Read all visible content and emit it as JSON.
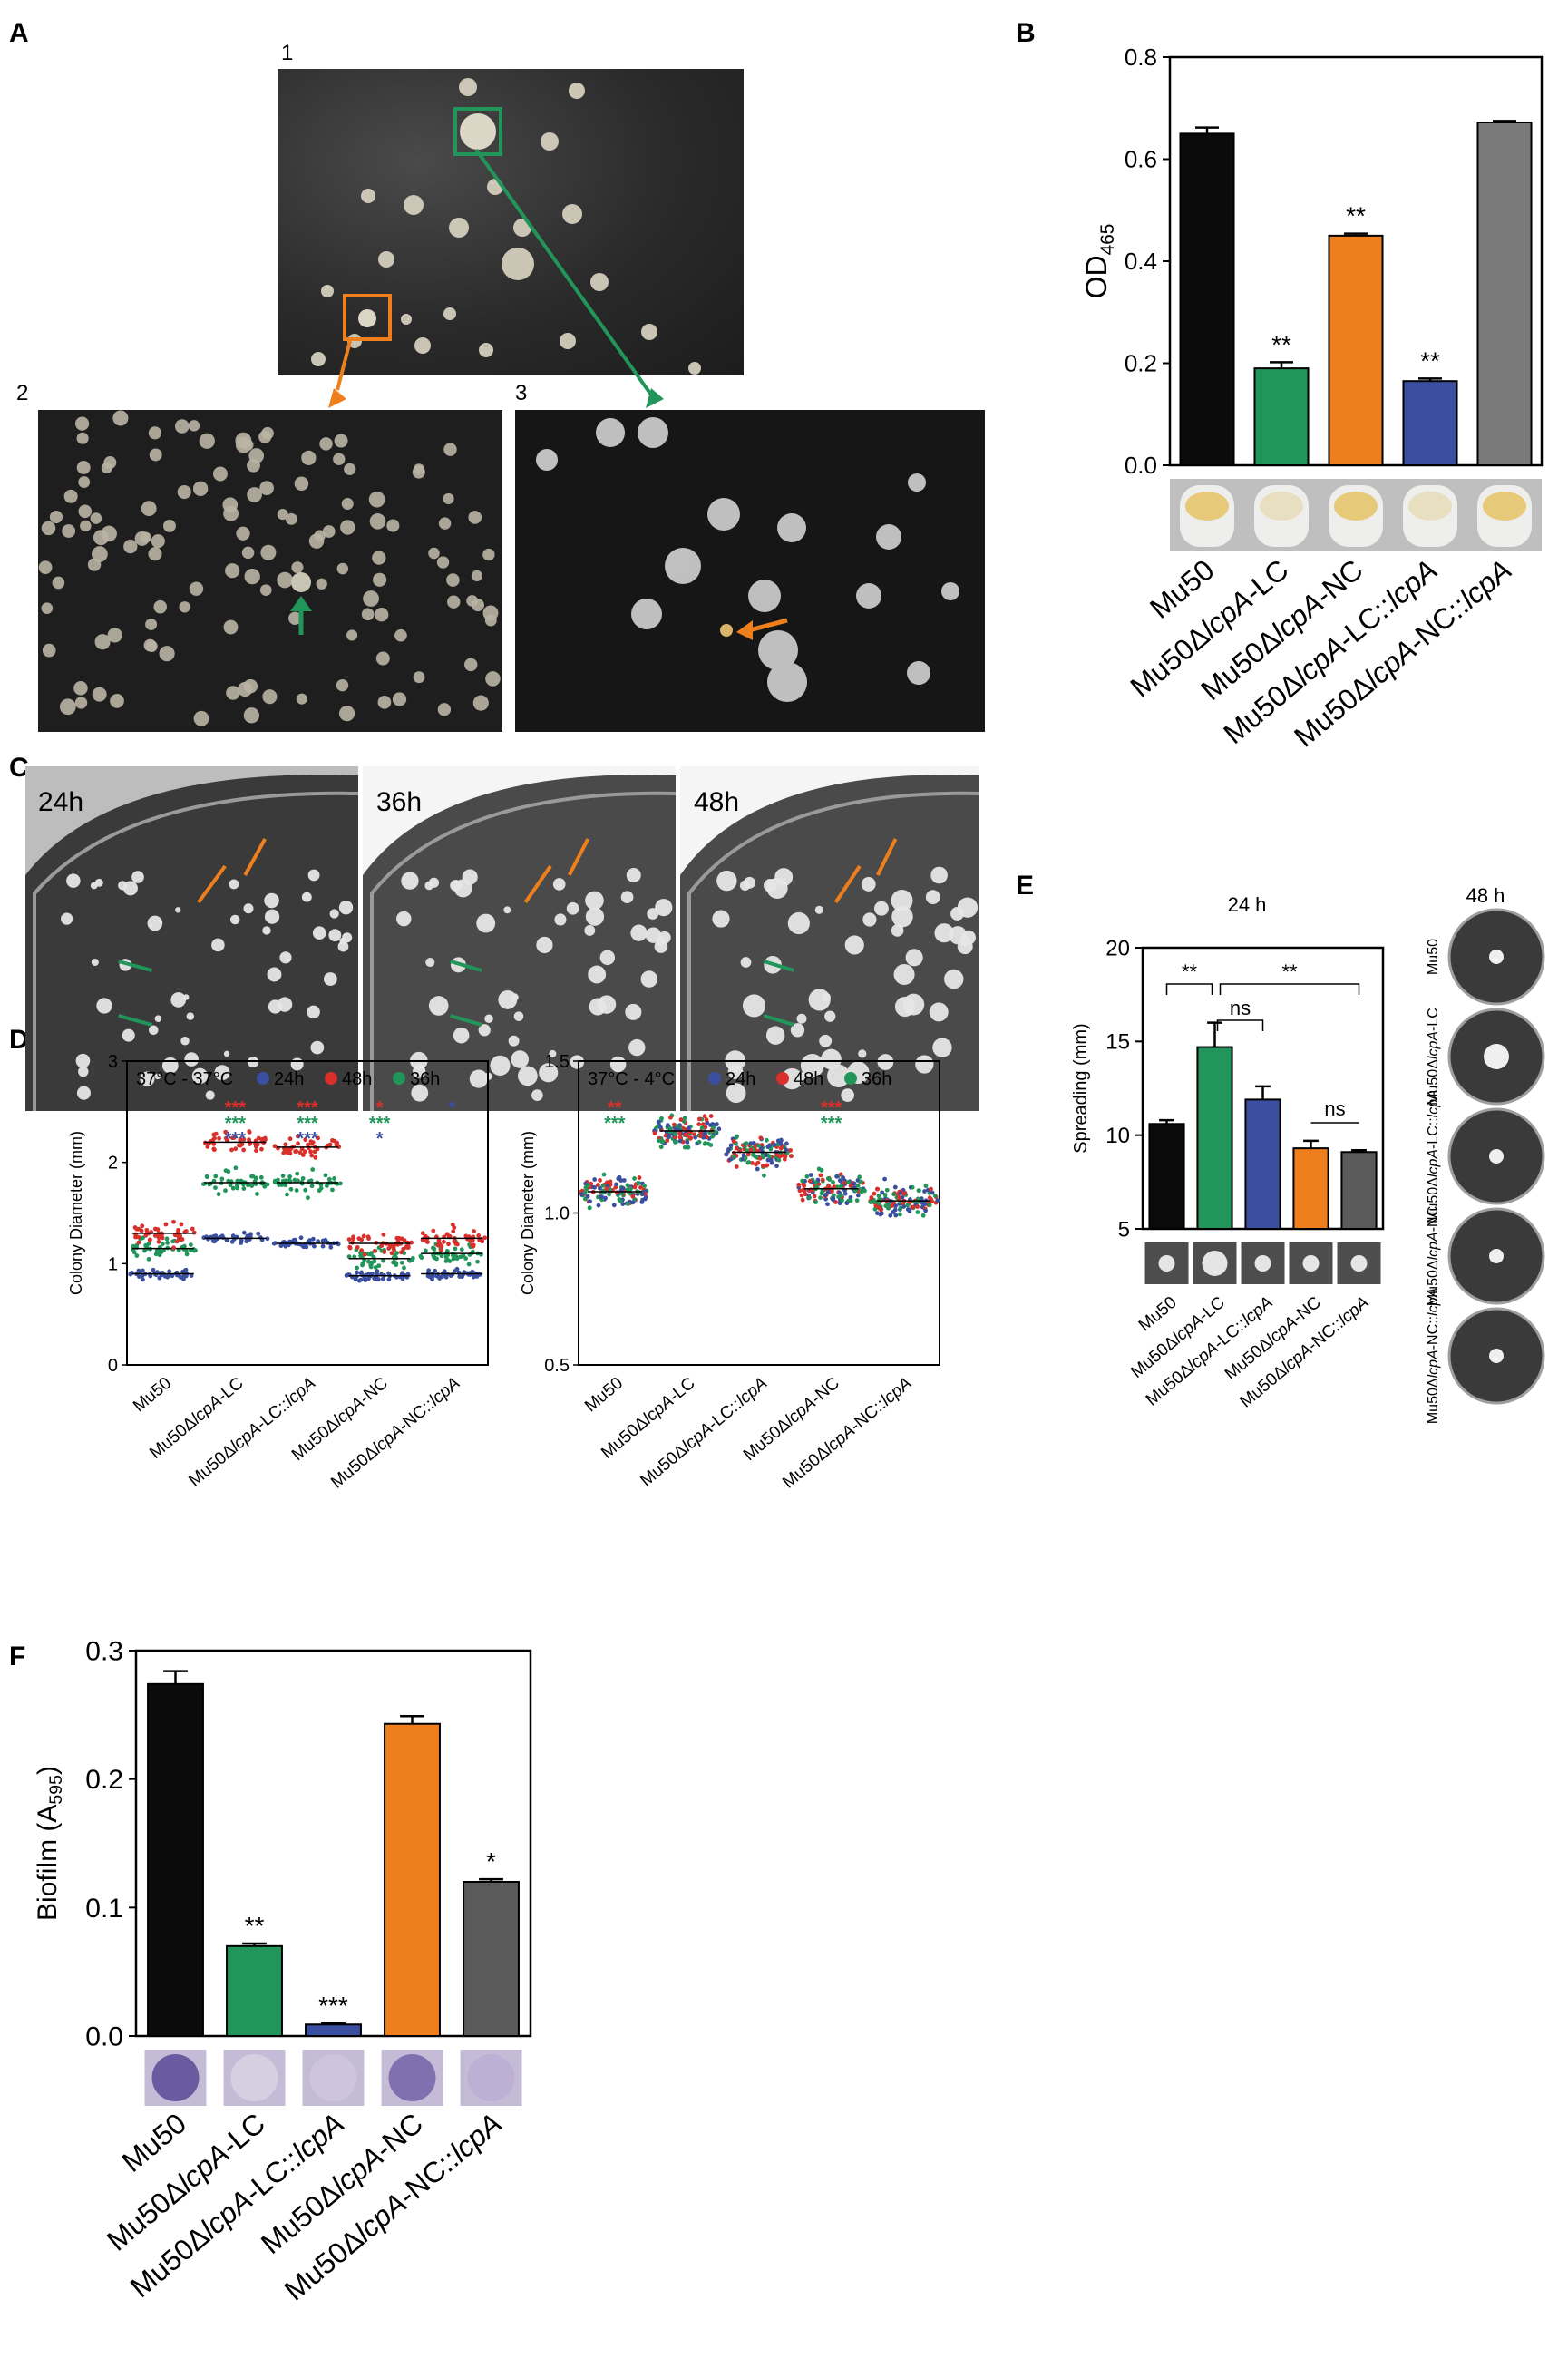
{
  "panels": {
    "A": {
      "letter": "A",
      "sub": [
        "1",
        "2",
        "3"
      ]
    },
    "B": {
      "letter": "B"
    },
    "C": {
      "letter": "C",
      "times": [
        "24h",
        "36h",
        "48h"
      ]
    },
    "D": {
      "letter": "D"
    },
    "E": {
      "letter": "E",
      "left_title": "24 h",
      "right_title": "48 h",
      "right_labels": [
        "Mu50",
        "Mu50ΔlcpA-LC",
        "Mu50ΔlcpA-LC::lcpA",
        "Mu50ΔlcpA-NC",
        "Mu50ΔlcpA-NC::lcpA"
      ]
    },
    "F": {
      "letter": "F"
    }
  },
  "colors": {
    "black": "#0b0b0b",
    "green": "#21955a",
    "orange": "#ee7f1c",
    "blue": "#3a4fa0",
    "gray": "#7a7a7a",
    "darkgray": "#5a5a5a",
    "red": "#d9302c"
  },
  "chart_data": [
    {
      "id": "B",
      "type": "bar",
      "categories": [
        "Mu50",
        "Mu50ΔlcpA-LC",
        "Mu50ΔlcpA-NC",
        "Mu50ΔlcpA-LC::lcpA",
        "Mu50ΔlcpA-NC::lcpA"
      ],
      "values": [
        0.65,
        0.19,
        0.45,
        0.165,
        0.672
      ],
      "errors": [
        0.012,
        0.012,
        0.004,
        0.005,
        0.003
      ],
      "significance": [
        "",
        "**",
        "**",
        "**",
        ""
      ],
      "bar_colors": [
        "#0b0b0b",
        "#21955a",
        "#ee7f1c",
        "#3a4fa0",
        "#7a7a7a"
      ],
      "ylabel": "OD465",
      "ylim": [
        0,
        0.8
      ],
      "yticks": [
        "0.0",
        "0.2",
        "0.4",
        "0.6",
        "0.8"
      ]
    },
    {
      "id": "D1",
      "type": "scatter",
      "legend_title": "37°C - 37°C",
      "legend": [
        {
          "name": "24h",
          "color": "#3a4fa0"
        },
        {
          "name": "48h",
          "color": "#d9302c"
        },
        {
          "name": "36h",
          "color": "#21955a"
        }
      ],
      "categories": [
        "Mu50",
        "Mu50ΔlcpA-LC",
        "Mu50ΔlcpA-LC::lcpA",
        "Mu50ΔlcpA-NC",
        "Mu50ΔlcpA-NC::lcpA"
      ],
      "means": {
        "24h": [
          0.9,
          1.25,
          1.2,
          0.88,
          0.9
        ],
        "36h": [
          1.15,
          1.8,
          1.8,
          1.05,
          1.1
        ],
        "48h": [
          1.3,
          2.2,
          2.15,
          1.2,
          1.25
        ]
      },
      "significance": [
        [],
        [
          {
            "text": "***",
            "color": "#d9302c"
          },
          {
            "text": "***",
            "color": "#21955a"
          },
          {
            "text": "***",
            "color": "#3a4fa0"
          }
        ],
        [
          {
            "text": "***",
            "color": "#d9302c"
          },
          {
            "text": "***",
            "color": "#21955a"
          },
          {
            "text": "***",
            "color": "#3a4fa0"
          }
        ],
        [
          {
            "text": "*",
            "color": "#d9302c"
          },
          {
            "text": "***",
            "color": "#21955a"
          },
          {
            "text": "*",
            "color": "#3a4fa0"
          }
        ],
        [
          {
            "text": "*",
            "color": "#3a4fa0"
          }
        ]
      ],
      "ylabel": "Colony Diameter (mm)",
      "ylim": [
        0,
        3
      ],
      "yticks": [
        "0",
        "1",
        "2",
        "3"
      ]
    },
    {
      "id": "D2",
      "type": "scatter",
      "legend_title": "37°C - 4°C",
      "legend": [
        {
          "name": "24h",
          "color": "#3a4fa0"
        },
        {
          "name": "48h",
          "color": "#d9302c"
        },
        {
          "name": "36h",
          "color": "#21955a"
        }
      ],
      "categories": [
        "Mu50",
        "Mu50ΔlcpA-LC",
        "Mu50ΔlcpA-LC::lcpA",
        "Mu50ΔlcpA-NC",
        "Mu50ΔlcpA-NC::lcpA"
      ],
      "means": [
        1.07,
        1.27,
        1.2,
        1.08,
        1.04
      ],
      "significance": [
        [
          {
            "text": "**",
            "color": "#d9302c"
          },
          {
            "text": "***",
            "color": "#21955a"
          }
        ],
        [],
        [],
        [
          {
            "text": "***",
            "color": "#d9302c"
          },
          {
            "text": "***",
            "color": "#21955a"
          }
        ],
        []
      ],
      "ylabel": "Colony Diameter (mm)",
      "ylim": [
        0.5,
        1.5
      ],
      "yticks": [
        "0.5",
        "1.0",
        "1.5"
      ]
    },
    {
      "id": "E",
      "type": "bar",
      "categories": [
        "Mu50",
        "Mu50ΔlcpA-LC",
        "Mu50ΔlcpA-LC::lcpA",
        "Mu50ΔlcpA-NC",
        "Mu50ΔlcpA-NC::lcpA"
      ],
      "values": [
        10.6,
        14.7,
        11.9,
        9.3,
        9.1
      ],
      "errors": [
        0.2,
        1.3,
        0.7,
        0.4,
        0.1
      ],
      "bar_colors": [
        "#0b0b0b",
        "#21955a",
        "#3a4fa0",
        "#ee7f1c",
        "#5a5a5a"
      ],
      "comparisons": [
        {
          "label": "**"
        },
        {
          "label": "ns"
        },
        {
          "label": "**"
        },
        {
          "label": "ns"
        }
      ],
      "ylabel": "Spreading (mm)",
      "ylim": [
        5,
        20
      ],
      "yticks": [
        "5",
        "10",
        "15",
        "20"
      ]
    },
    {
      "id": "F",
      "type": "bar",
      "categories": [
        "Mu50",
        "Mu50ΔlcpA-LC",
        "Mu50ΔlcpA-LC::lcpA",
        "Mu50ΔlcpA-NC",
        "Mu50ΔlcpA-NC::lcpA"
      ],
      "values": [
        0.274,
        0.07,
        0.009,
        0.243,
        0.12
      ],
      "errors": [
        0.01,
        0.002,
        0.001,
        0.006,
        0.002
      ],
      "significance": [
        "",
        "**",
        "***",
        "",
        "*"
      ],
      "bar_colors": [
        "#0b0b0b",
        "#21955a",
        "#3a4fa0",
        "#ee7f1c",
        "#5a5a5a"
      ],
      "ylabel": "Biofilm (A595)",
      "ylim": [
        0,
        0.3
      ],
      "yticks": [
        "0.0",
        "0.1",
        "0.2",
        "0.3"
      ]
    }
  ]
}
